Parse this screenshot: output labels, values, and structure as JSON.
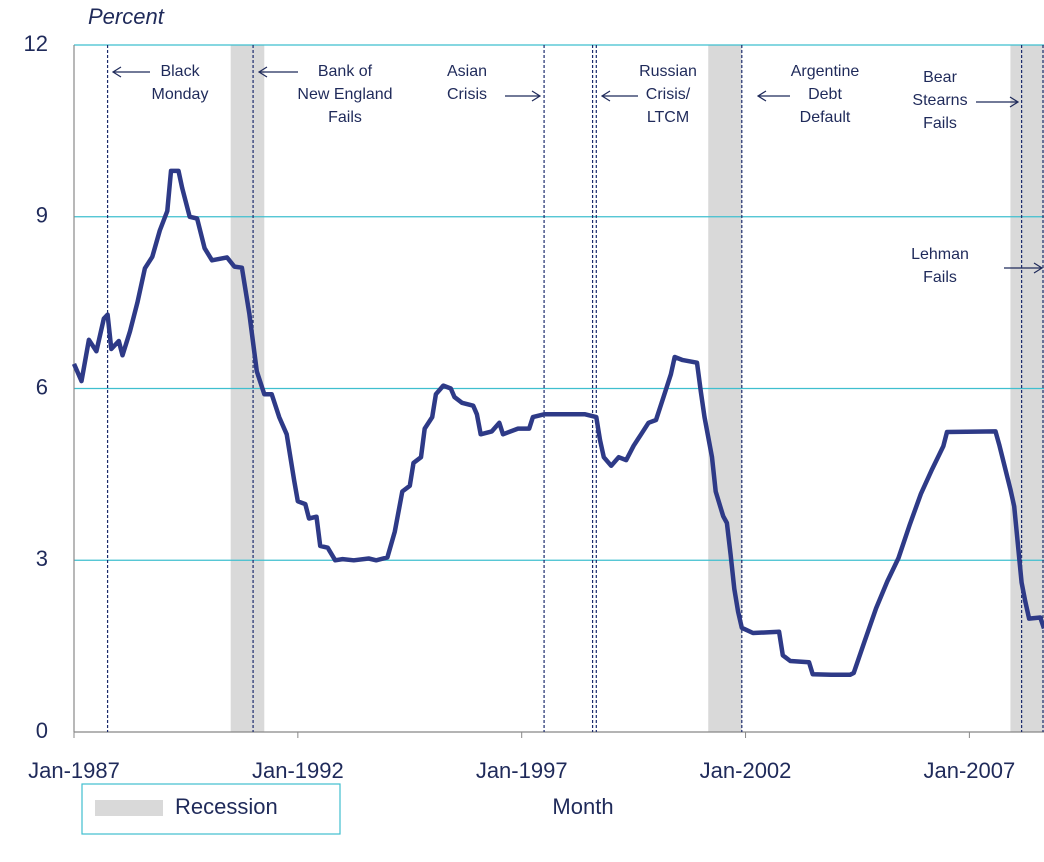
{
  "chart_data": {
    "type": "line",
    "y_label": "Percent",
    "x_label": "Month",
    "recession_label": "Recession",
    "color": "#2e3a87",
    "grid_color": "#3fbfcf",
    "recession_color": "#d9d9d9",
    "grid": true,
    "x": [
      "1987-01",
      "1987-03",
      "1987-05",
      "1987-07",
      "1987-09",
      "1987-10",
      "1987-11",
      "1988-01",
      "1988-02",
      "1988-04",
      "1988-06",
      "1988-08",
      "1988-10",
      "1988-12",
      "1989-02",
      "1989-03",
      "1989-05",
      "1989-06",
      "1989-08",
      "1989-10",
      "1989-12",
      "1990-02",
      "1990-06",
      "1990-08",
      "1990-10",
      "1990-12",
      "1991-02",
      "1991-04",
      "1991-06",
      "1991-08",
      "1991-10",
      "1991-12",
      "1992-01",
      "1992-03",
      "1992-04",
      "1992-06",
      "1992-07",
      "1992-09",
      "1992-11",
      "1993-01",
      "1993-04",
      "1993-08",
      "1993-10",
      "1994-01",
      "1994-03",
      "1994-05",
      "1994-07",
      "1994-08",
      "1994-10",
      "1994-11",
      "1995-01",
      "1995-02",
      "1995-04",
      "1995-06",
      "1995-07",
      "1995-09",
      "1995-12",
      "1996-01",
      "1996-02",
      "1996-05",
      "1996-07",
      "1996-08",
      "1996-12",
      "1997-03",
      "1997-04",
      "1997-07",
      "1998-01",
      "1998-06",
      "1998-09",
      "1998-10",
      "1998-11",
      "1999-01",
      "1999-03",
      "1999-05",
      "1999-07",
      "1999-09",
      "1999-11",
      "2000-01",
      "2000-03",
      "2000-05",
      "2000-06",
      "2000-08",
      "2000-12",
      "2001-01",
      "2001-02",
      "2001-04",
      "2001-05",
      "2001-07",
      "2001-08",
      "2001-09",
      "2001-10",
      "2001-11",
      "2001-12",
      "2002-03",
      "2002-10",
      "2002-11",
      "2003-01",
      "2003-06",
      "2003-07",
      "2003-12",
      "2004-05",
      "2004-06",
      "2004-09",
      "2004-12",
      "2005-03",
      "2005-06",
      "2005-09",
      "2005-12",
      "2006-03",
      "2006-06",
      "2006-07",
      "2007-08",
      "2007-09",
      "2007-12",
      "2008-01",
      "2008-03",
      "2008-04",
      "2008-05",
      "2008-08",
      "2008-09"
    ],
    "values": [
      6.43,
      6.13,
      6.85,
      6.65,
      7.22,
      7.29,
      6.69,
      6.83,
      6.58,
      7.0,
      7.5,
      8.1,
      8.3,
      8.76,
      9.1,
      9.8,
      9.8,
      9.5,
      9.0,
      8.97,
      8.45,
      8.24,
      8.29,
      8.13,
      8.11,
      7.31,
      6.3,
      5.9,
      5.9,
      5.5,
      5.2,
      4.4,
      4.03,
      3.98,
      3.73,
      3.76,
      3.25,
      3.22,
      3.0,
      3.02,
      3.0,
      3.03,
      3.0,
      3.05,
      3.5,
      4.2,
      4.3,
      4.7,
      4.8,
      5.3,
      5.5,
      5.9,
      6.05,
      6.0,
      5.85,
      5.75,
      5.7,
      5.55,
      5.2,
      5.25,
      5.4,
      5.2,
      5.3,
      5.3,
      5.5,
      5.55,
      5.55,
      5.55,
      5.5,
      5.1,
      4.8,
      4.65,
      4.8,
      4.75,
      5.0,
      5.2,
      5.4,
      5.45,
      5.85,
      6.25,
      6.55,
      6.5,
      6.45,
      5.95,
      5.5,
      4.8,
      4.2,
      3.77,
      3.65,
      3.1,
      2.5,
      2.1,
      1.82,
      1.73,
      1.75,
      1.34,
      1.24,
      1.22,
      1.01,
      1.0,
      1.0,
      1.03,
      1.6,
      2.16,
      2.63,
      3.04,
      3.62,
      4.16,
      4.59,
      4.99,
      5.24,
      5.25,
      5.02,
      4.24,
      3.94,
      2.61,
      2.28,
      1.98,
      2.0,
      1.81
    ],
    "xlim": [
      "1987-01",
      "2008-09"
    ],
    "xticks": [
      {
        "value": "1987-01",
        "label": "Jan-1987"
      },
      {
        "value": "1992-01",
        "label": "Jan-1992"
      },
      {
        "value": "1997-01",
        "label": "Jan-1997"
      },
      {
        "value": "2002-01",
        "label": "Jan-2002"
      },
      {
        "value": "2007-01",
        "label": "Jan-2007"
      }
    ],
    "ylim": [
      0,
      12
    ],
    "yticks": [
      0,
      3,
      6,
      9,
      12
    ],
    "recessions": [
      [
        "1990-07",
        "1991-03"
      ],
      [
        "2001-03",
        "2001-11"
      ],
      [
        "2007-12",
        "2008-09"
      ]
    ],
    "events": [
      {
        "date": "1987-10",
        "label": [
          "Black",
          "Monday"
        ]
      },
      {
        "date": "1991-01",
        "label": [
          "Bank of",
          "New England",
          "Fails"
        ]
      },
      {
        "date": "1997-07",
        "label": [
          "Asian",
          "Crisis"
        ]
      },
      {
        "date": "1998-08",
        "label": [
          "Russian",
          "Crisis/",
          "LTCM"
        ]
      },
      {
        "date": "1998-09",
        "label": []
      },
      {
        "date": "2001-12",
        "label": [
          "Argentine",
          "Debt",
          "Default"
        ]
      },
      {
        "date": "2008-03",
        "label": [
          "Bear",
          "Stearns",
          "Fails"
        ]
      },
      {
        "date": "2008-09",
        "label": [
          "Lehman",
          "Fails"
        ]
      }
    ]
  }
}
